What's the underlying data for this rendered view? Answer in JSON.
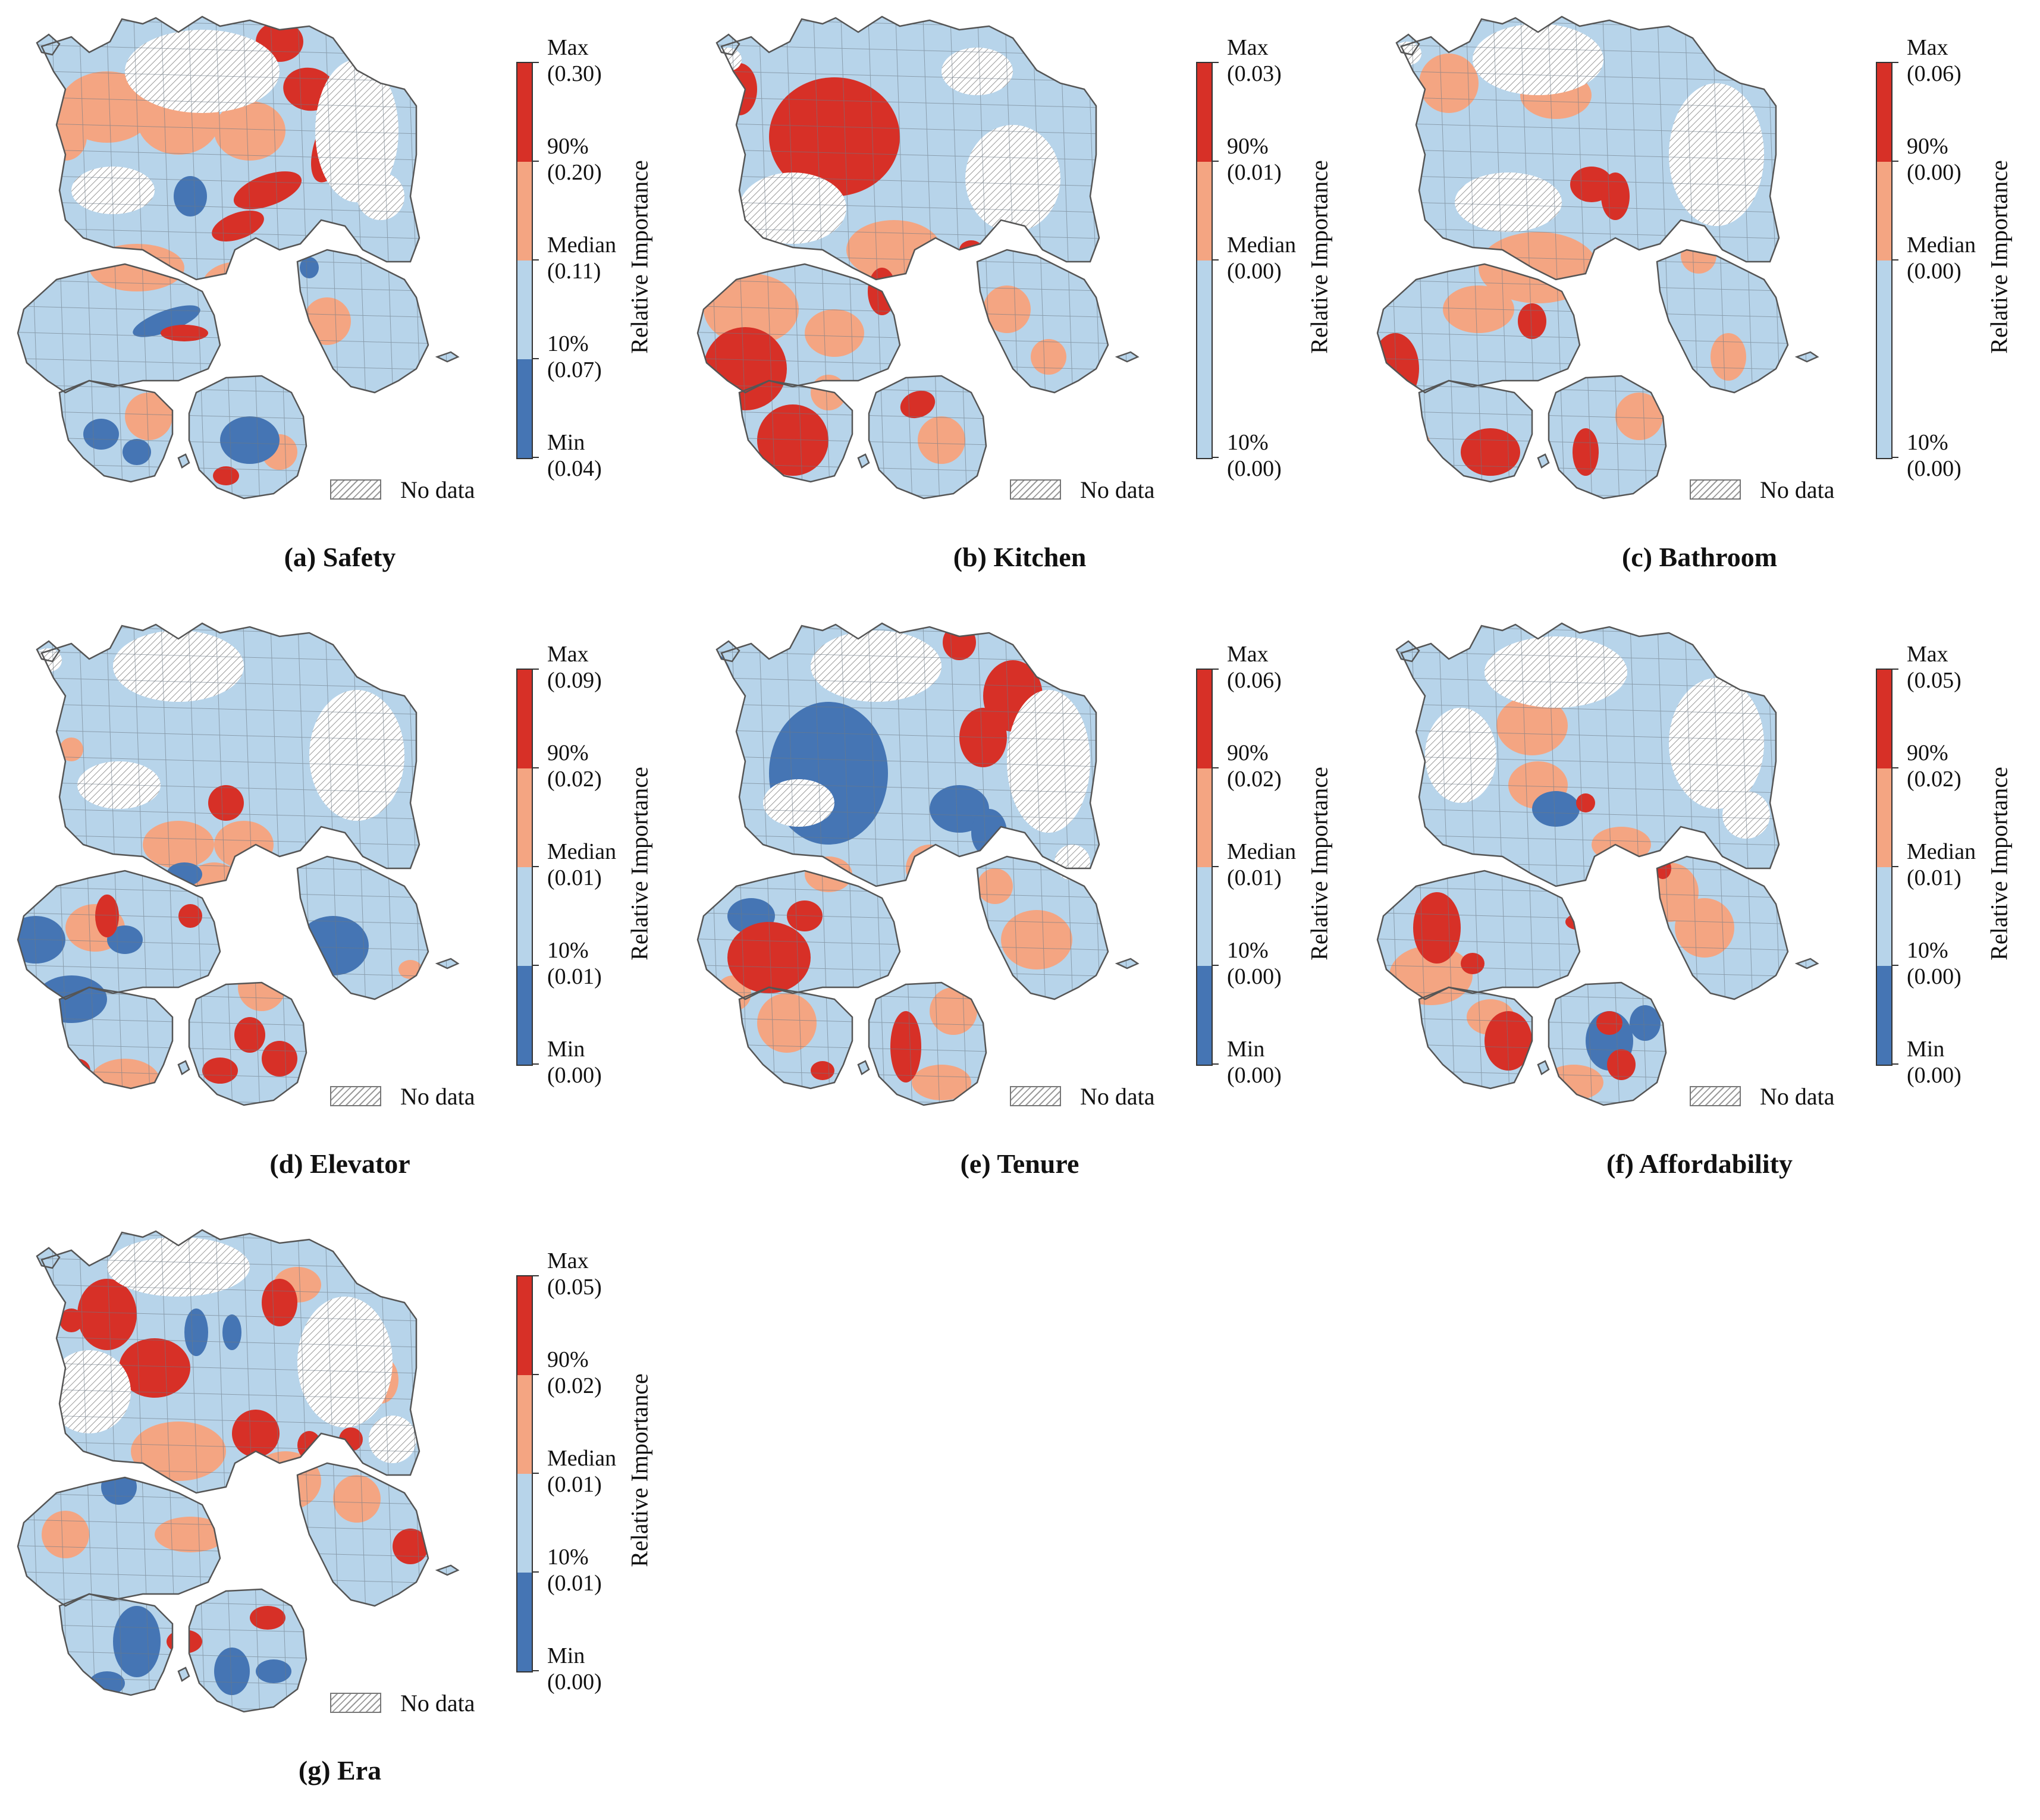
{
  "figure": {
    "colors": {
      "max_band": "#d73027",
      "upper_band": "#f4a582",
      "lower_band": "#b7d4ea",
      "min_band": "#4575b4",
      "nodata_hatch": "#9a9a9a",
      "outline": "#555555"
    },
    "axis_title": "Relative Importance",
    "nodata_label": "No data",
    "legend_breaks": [
      "Max",
      "90%",
      "Median",
      "10%",
      "Min"
    ],
    "panels": [
      {
        "id": "a",
        "caption": "(a) Safety",
        "bands": 4,
        "values": [
          "(0.30)",
          "(0.20)",
          "(0.11)",
          "(0.07)",
          "(0.04)"
        ]
      },
      {
        "id": "b",
        "caption": "(b) Kitchen",
        "bands": 3,
        "values": [
          "(0.03)",
          "(0.01)",
          "(0.00)",
          "(0.00)"
        ]
      },
      {
        "id": "c",
        "caption": "(c) Bathroom",
        "bands": 3,
        "values": [
          "(0.06)",
          "(0.00)",
          "(0.00)",
          "(0.00)"
        ]
      },
      {
        "id": "d",
        "caption": "(d) Elevator",
        "bands": 4,
        "values": [
          "(0.09)",
          "(0.02)",
          "(0.01)",
          "(0.01)",
          "(0.00)"
        ]
      },
      {
        "id": "e",
        "caption": "(e) Tenure",
        "bands": 4,
        "values": [
          "(0.06)",
          "(0.02)",
          "(0.01)",
          "(0.00)",
          "(0.00)"
        ]
      },
      {
        "id": "f",
        "caption": "(f) Affordability",
        "bands": 4,
        "values": [
          "(0.05)",
          "(0.02)",
          "(0.01)",
          "(0.00)",
          "(0.00)"
        ]
      },
      {
        "id": "g",
        "caption": "(g) Era",
        "bands": 4,
        "values": [
          "(0.05)",
          "(0.02)",
          "(0.01)",
          "(0.01)",
          "(0.00)"
        ]
      }
    ]
  }
}
